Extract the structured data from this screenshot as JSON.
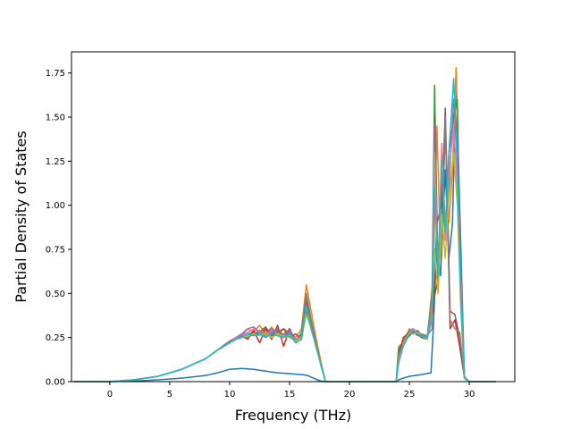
{
  "chart_data": {
    "type": "line",
    "title": "",
    "xlabel": "Frequency (THz)",
    "ylabel": "Partial Density of States",
    "xlim": [
      -3.2,
      33.8
    ],
    "ylim": [
      0,
      1.87
    ],
    "x_ticks": [
      0,
      5,
      10,
      15,
      20,
      25,
      30
    ],
    "y_ticks": [
      0.0,
      0.25,
      0.5,
      0.75,
      1.0,
      1.25,
      1.5,
      1.75
    ],
    "x_tick_labels": [
      "0",
      "5",
      "10",
      "15",
      "20",
      "25",
      "30"
    ],
    "y_tick_labels": [
      "0.00",
      "0.25",
      "0.50",
      "0.75",
      "1.00",
      "1.25",
      "1.50",
      "1.75"
    ],
    "grid": false,
    "legend": "none",
    "series_colors": [
      "#1f77b4",
      "#ff7f0e",
      "#2ca02c",
      "#d62728",
      "#9467bd",
      "#8c564b",
      "#e377c2",
      "#7f7f7f",
      "#bcbd22",
      "#17becf"
    ],
    "series": [
      {
        "x": [
          -3.0,
          0,
          2,
          4,
          6,
          8,
          9,
          10,
          11,
          12,
          13,
          14,
          15,
          16,
          16.5,
          17,
          17.5,
          18,
          20,
          23.9,
          24.1,
          24.5,
          25,
          25.5,
          26,
          26.8,
          27,
          27.3,
          27.6,
          28,
          28.3,
          28.6,
          28.9,
          29.2,
          29.6,
          30,
          32.2
        ],
        "y": [
          0,
          0,
          0.003,
          0.01,
          0.02,
          0.035,
          0.05,
          0.07,
          0.075,
          0.07,
          0.06,
          0.05,
          0.045,
          0.04,
          0.035,
          0.02,
          0.005,
          0,
          0,
          0,
          0.01,
          0.02,
          0.03,
          0.035,
          0.04,
          0.05,
          0.3,
          0.8,
          0.6,
          1.2,
          0.7,
          0.9,
          1.75,
          1.0,
          0.02,
          0,
          0
        ]
      },
      {
        "x": [
          -3.0,
          0,
          2,
          4,
          6,
          8,
          9,
          10,
          10.5,
          11,
          11.5,
          12,
          12.5,
          13,
          13.5,
          14,
          14.5,
          15,
          15.5,
          16,
          16.4,
          16.8,
          17.2,
          17.6,
          18,
          20,
          23.9,
          24.1,
          24.5,
          25,
          25.3,
          25.7,
          26,
          26.5,
          27,
          27.3,
          27.6,
          28,
          28.3,
          28.6,
          28.9,
          29.2,
          29.6,
          30,
          32.2
        ],
        "y": [
          0,
          0,
          0.01,
          0.03,
          0.07,
          0.13,
          0.18,
          0.23,
          0.25,
          0.26,
          0.3,
          0.28,
          0.32,
          0.27,
          0.31,
          0.26,
          0.3,
          0.28,
          0.25,
          0.3,
          0.55,
          0.4,
          0.25,
          0.12,
          0,
          0,
          0,
          0.2,
          0.22,
          0.3,
          0.28,
          0.26,
          0.27,
          0.25,
          0.6,
          1.45,
          0.7,
          1.4,
          0.9,
          1.2,
          1.78,
          0.8,
          0.03,
          0,
          0
        ]
      },
      {
        "x": [
          -3.0,
          0,
          2,
          4,
          6,
          8,
          9,
          10,
          10.5,
          11,
          11.5,
          12,
          12.5,
          13,
          13.5,
          14,
          14.5,
          15,
          15.5,
          16,
          16.4,
          16.8,
          17.2,
          17.6,
          18,
          20,
          23.9,
          24.1,
          24.5,
          25,
          25.3,
          25.7,
          26,
          26.5,
          26.9,
          27.1,
          27.4,
          27.7,
          28,
          28.3,
          28.7,
          29.0,
          29.3,
          29.6,
          30,
          32.2
        ],
        "y": [
          0,
          0,
          0.01,
          0.03,
          0.07,
          0.13,
          0.18,
          0.22,
          0.24,
          0.25,
          0.27,
          0.28,
          0.26,
          0.3,
          0.27,
          0.29,
          0.25,
          0.3,
          0.22,
          0.28,
          0.5,
          0.35,
          0.22,
          0.1,
          0,
          0,
          0,
          0.18,
          0.23,
          0.29,
          0.3,
          0.27,
          0.26,
          0.25,
          0.5,
          1.68,
          0.6,
          1.2,
          0.8,
          1.3,
          1.5,
          1.6,
          0.5,
          0.02,
          0,
          0
        ]
      },
      {
        "x": [
          -3.0,
          0,
          2,
          4,
          6,
          8,
          9,
          10,
          10.5,
          11,
          11.5,
          12,
          12.5,
          13,
          13.5,
          14,
          14.5,
          15,
          15.5,
          16,
          16.4,
          16.8,
          17.2,
          17.6,
          18,
          20,
          23.9,
          24.1,
          24.5,
          25,
          25.3,
          25.7,
          26,
          26.5,
          27,
          27.3,
          27.7,
          28,
          28.4,
          28.8,
          29.2,
          29.6,
          30,
          32.2
        ],
        "y": [
          0,
          0,
          0.01,
          0.03,
          0.07,
          0.13,
          0.18,
          0.23,
          0.24,
          0.26,
          0.24,
          0.29,
          0.22,
          0.3,
          0.24,
          0.32,
          0.2,
          0.3,
          0.23,
          0.27,
          0.45,
          0.32,
          0.2,
          0.1,
          0,
          0,
          0,
          0.15,
          0.25,
          0.28,
          0.27,
          0.29,
          0.26,
          0.25,
          0.4,
          0.9,
          1.0,
          1.5,
          0.3,
          0.35,
          0.2,
          0.02,
          0,
          0
        ]
      },
      {
        "x": [
          -3.0,
          0,
          2,
          4,
          6,
          8,
          9,
          10,
          10.5,
          11,
          11.5,
          12,
          12.5,
          13,
          13.5,
          14,
          14.5,
          15,
          15.5,
          16,
          16.4,
          16.8,
          17.2,
          17.6,
          18,
          20,
          23.9,
          24.1,
          24.5,
          25,
          25.3,
          25.7,
          26,
          26.5,
          26.9,
          27.1,
          27.4,
          27.7,
          28,
          28.3,
          28.7,
          29.0,
          29.3,
          29.6,
          30,
          32.2
        ],
        "y": [
          0,
          0,
          0.01,
          0.03,
          0.07,
          0.13,
          0.18,
          0.23,
          0.25,
          0.27,
          0.3,
          0.31,
          0.28,
          0.27,
          0.3,
          0.28,
          0.27,
          0.29,
          0.24,
          0.26,
          0.48,
          0.34,
          0.22,
          0.1,
          0,
          0,
          0,
          0.12,
          0.2,
          0.27,
          0.3,
          0.28,
          0.27,
          0.26,
          0.3,
          1.45,
          0.5,
          1.3,
          0.9,
          1.1,
          1.6,
          1.4,
          0.6,
          0.02,
          0,
          0
        ]
      },
      {
        "x": [
          -3.0,
          0,
          2,
          4,
          6,
          8,
          9,
          10,
          10.5,
          11,
          11.5,
          12,
          12.5,
          13,
          13.5,
          14,
          14.5,
          15,
          15.5,
          16,
          16.4,
          16.8,
          17.2,
          17.6,
          18,
          20,
          23.9,
          24.1,
          24.5,
          25,
          25.3,
          25.7,
          26,
          26.5,
          27,
          27.3,
          27.7,
          28,
          28.4,
          28.8,
          29.2,
          29.6,
          30,
          32.2
        ],
        "y": [
          0,
          0,
          0.01,
          0.03,
          0.07,
          0.13,
          0.18,
          0.22,
          0.24,
          0.25,
          0.27,
          0.26,
          0.28,
          0.31,
          0.26,
          0.28,
          0.3,
          0.25,
          0.27,
          0.24,
          0.4,
          0.3,
          0.22,
          0.1,
          0,
          0,
          0,
          0.15,
          0.22,
          0.26,
          0.28,
          0.27,
          0.25,
          0.24,
          0.45,
          0.55,
          0.9,
          1.55,
          0.4,
          0.38,
          0.25,
          0.02,
          0,
          0
        ]
      },
      {
        "x": [
          -3.0,
          0,
          2,
          4,
          6,
          8,
          9,
          10,
          10.5,
          11,
          11.5,
          12,
          12.5,
          13,
          13.5,
          14,
          14.5,
          15,
          15.5,
          16,
          16.4,
          16.8,
          17.2,
          17.6,
          18,
          20,
          23.9,
          24.1,
          24.5,
          25,
          25.3,
          25.7,
          26,
          26.5,
          26.9,
          27.1,
          27.4,
          27.7,
          28,
          28.3,
          28.7,
          29.0,
          29.3,
          29.6,
          30,
          32.2
        ],
        "y": [
          0,
          0,
          0.01,
          0.03,
          0.07,
          0.13,
          0.18,
          0.23,
          0.25,
          0.26,
          0.28,
          0.3,
          0.28,
          0.26,
          0.29,
          0.27,
          0.25,
          0.27,
          0.24,
          0.26,
          0.42,
          0.31,
          0.21,
          0.1,
          0,
          0,
          0,
          0.1,
          0.2,
          0.28,
          0.3,
          0.27,
          0.26,
          0.25,
          0.35,
          1.3,
          0.6,
          1.35,
          0.8,
          1.2,
          1.45,
          1.1,
          0.5,
          0.02,
          0,
          0
        ]
      },
      {
        "x": [
          -3.0,
          0,
          2,
          4,
          6,
          8,
          9,
          10,
          10.5,
          11,
          11.5,
          12,
          12.5,
          13,
          13.5,
          14,
          14.5,
          15,
          15.5,
          16,
          16.4,
          16.8,
          17.2,
          17.6,
          18,
          20,
          23.9,
          24.1,
          24.5,
          25,
          25.3,
          25.7,
          26,
          26.5,
          27,
          27.3,
          27.7,
          28,
          28.4,
          28.8,
          29.2,
          29.6,
          30,
          32.2
        ],
        "y": [
          0,
          0,
          0.01,
          0.03,
          0.07,
          0.13,
          0.18,
          0.23,
          0.24,
          0.26,
          0.25,
          0.27,
          0.29,
          0.25,
          0.28,
          0.3,
          0.26,
          0.28,
          0.22,
          0.27,
          0.5,
          0.33,
          0.2,
          0.1,
          0,
          0,
          0,
          0.15,
          0.21,
          0.27,
          0.29,
          0.26,
          0.27,
          0.25,
          0.55,
          0.8,
          0.7,
          1.5,
          0.35,
          0.3,
          0.28,
          0.02,
          0,
          0
        ]
      },
      {
        "x": [
          -3.0,
          0,
          2,
          4,
          6,
          8,
          9,
          10,
          10.5,
          11,
          11.5,
          12,
          12.5,
          13,
          13.5,
          14,
          14.5,
          15,
          15.5,
          16,
          16.4,
          16.8,
          17.2,
          17.6,
          18,
          20,
          23.9,
          24.1,
          24.5,
          25,
          25.3,
          25.7,
          26,
          26.5,
          26.9,
          27.1,
          27.4,
          27.7,
          28,
          28.3,
          28.7,
          29.0,
          29.3,
          29.6,
          30,
          32.2
        ],
        "y": [
          0,
          0,
          0.01,
          0.03,
          0.07,
          0.13,
          0.18,
          0.22,
          0.24,
          0.25,
          0.26,
          0.27,
          0.26,
          0.28,
          0.25,
          0.27,
          0.26,
          0.25,
          0.23,
          0.25,
          0.38,
          0.3,
          0.2,
          0.1,
          0,
          0,
          0,
          0.12,
          0.22,
          0.28,
          0.27,
          0.28,
          0.26,
          0.24,
          0.4,
          0.75,
          0.5,
          0.95,
          0.7,
          1.05,
          1.3,
          1.0,
          0.4,
          0.02,
          0,
          0
        ]
      },
      {
        "x": [
          -3.0,
          0,
          2,
          4,
          6,
          8,
          9,
          10,
          10.5,
          11,
          11.5,
          12,
          12.5,
          13,
          13.5,
          14,
          14.5,
          15,
          15.5,
          16,
          16.4,
          16.8,
          17.2,
          17.6,
          18,
          20,
          23.9,
          24.1,
          24.5,
          25,
          25.3,
          25.7,
          26,
          26.5,
          26.9,
          27.1,
          27.4,
          27.7,
          28,
          28.3,
          28.7,
          29.0,
          29.3,
          29.6,
          30,
          32.2
        ],
        "y": [
          0,
          0,
          0.01,
          0.03,
          0.07,
          0.13,
          0.18,
          0.22,
          0.24,
          0.25,
          0.27,
          0.26,
          0.27,
          0.25,
          0.27,
          0.26,
          0.25,
          0.27,
          0.22,
          0.24,
          0.43,
          0.3,
          0.2,
          0.1,
          0,
          0,
          0,
          0.13,
          0.21,
          0.27,
          0.29,
          0.27,
          0.26,
          0.25,
          0.38,
          1.1,
          0.6,
          1.25,
          0.85,
          1.3,
          1.72,
          1.2,
          0.45,
          0.02,
          0,
          0
        ]
      }
    ]
  }
}
